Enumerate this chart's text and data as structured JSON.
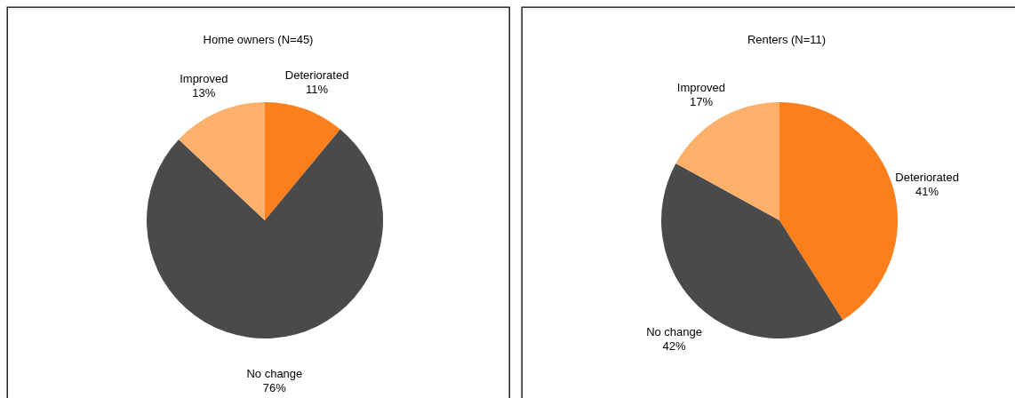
{
  "chart_data": [
    {
      "type": "pie",
      "title": "Home owners (N=45)",
      "categories": [
        "Deteriorated",
        "No change",
        "Improved"
      ],
      "values": [
        11,
        76,
        13
      ],
      "value_labels": [
        "11%",
        "76%",
        "13%"
      ],
      "colors": [
        "#fd7f1c",
        "#4a4a4a",
        "#fdb06a"
      ]
    },
    {
      "type": "pie",
      "title": "Renters (N=11)",
      "categories": [
        "Deteriorated",
        "No change",
        "Improved"
      ],
      "values": [
        41,
        42,
        17
      ],
      "value_labels": [
        "41%",
        "42%",
        "17%"
      ],
      "colors": [
        "#fd7f1c",
        "#4a4a4a",
        "#fdb06a"
      ]
    }
  ]
}
